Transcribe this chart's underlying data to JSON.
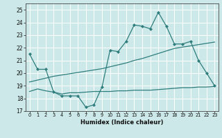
{
  "title": "",
  "xlabel": "Humidex (Indice chaleur)",
  "bg_color": "#cce8e8",
  "grid_color": "#ffffff",
  "line_color": "#2e7d7d",
  "xlim": [
    -0.5,
    23.5
  ],
  "ylim": [
    17,
    25.5
  ],
  "yticks": [
    17,
    18,
    19,
    20,
    21,
    22,
    23,
    24,
    25
  ],
  "xticks": [
    0,
    1,
    2,
    3,
    4,
    5,
    6,
    7,
    8,
    9,
    10,
    11,
    12,
    13,
    14,
    15,
    16,
    17,
    18,
    19,
    20,
    21,
    22,
    23
  ],
  "line1_x": [
    0,
    1,
    2,
    3,
    4,
    5,
    6,
    7,
    8,
    9,
    10,
    11,
    12,
    13,
    14,
    15,
    16,
    17,
    18,
    19,
    20,
    21,
    22,
    23
  ],
  "line1_y": [
    21.5,
    20.3,
    20.3,
    18.5,
    18.2,
    18.2,
    18.2,
    17.3,
    17.5,
    18.9,
    21.8,
    21.7,
    22.5,
    23.8,
    23.7,
    23.5,
    24.8,
    23.7,
    22.3,
    22.3,
    22.5,
    21.0,
    20.0,
    19.0
  ],
  "line2_x": [
    0,
    1,
    2,
    3,
    4,
    5,
    6,
    7,
    8,
    9,
    10,
    11,
    12,
    13,
    14,
    15,
    16,
    17,
    18,
    19,
    20,
    21,
    22,
    23
  ],
  "line2_y": [
    19.3,
    19.45,
    19.6,
    19.75,
    19.85,
    19.95,
    20.05,
    20.15,
    20.25,
    20.35,
    20.5,
    20.65,
    20.8,
    21.0,
    21.15,
    21.35,
    21.55,
    21.75,
    21.95,
    22.05,
    22.15,
    22.25,
    22.35,
    22.45
  ],
  "line3_x": [
    0,
    1,
    2,
    3,
    4,
    5,
    6,
    7,
    8,
    9,
    10,
    11,
    12,
    13,
    14,
    15,
    16,
    17,
    18,
    19,
    20,
    21,
    22,
    23
  ],
  "line3_y": [
    18.55,
    18.75,
    18.6,
    18.5,
    18.35,
    18.45,
    18.45,
    18.5,
    18.55,
    18.55,
    18.55,
    18.6,
    18.6,
    18.65,
    18.65,
    18.65,
    18.7,
    18.75,
    18.8,
    18.85,
    18.85,
    18.9,
    18.9,
    18.95
  ]
}
